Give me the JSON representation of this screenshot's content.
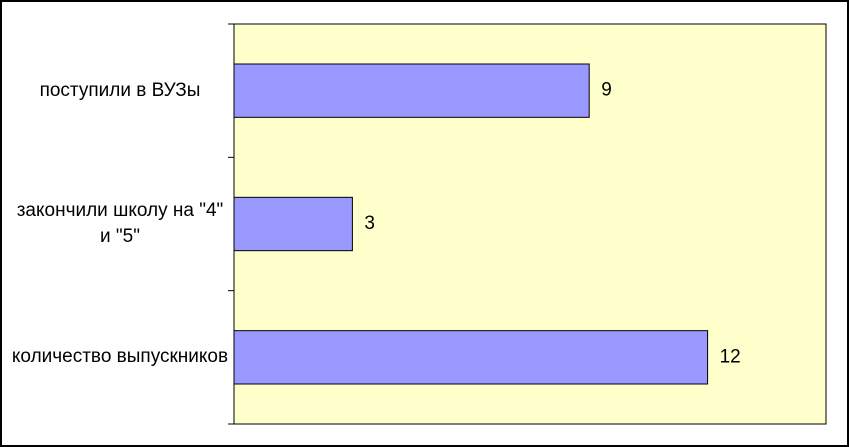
{
  "chart_data": {
    "type": "bar",
    "orientation": "horizontal",
    "categories": [
      "поступили в ВУЗы",
      "закончили школу на \"4\" и \"5\"",
      "количество выпускников"
    ],
    "values": [
      9,
      3,
      12
    ],
    "color": "#9999ff",
    "plot_background": "#ffffcc",
    "xlim": [
      0,
      15
    ],
    "show_value_labels": true
  }
}
